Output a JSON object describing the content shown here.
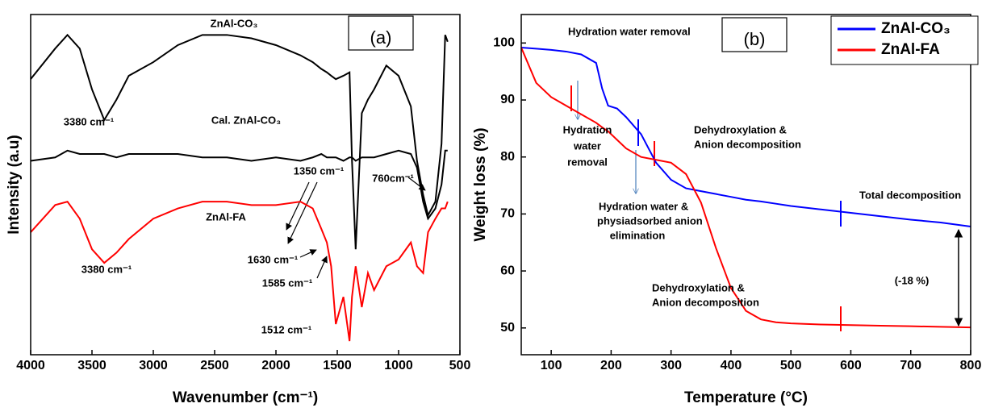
{
  "chart_data": [
    {
      "type": "line",
      "panel_label": "(a)",
      "x_label": "Wavenumber (cm⁻¹)",
      "y_label": "Intensity (a.u)",
      "x": [
        4000,
        3800,
        3700,
        3600,
        3500,
        3400,
        3300,
        3200,
        3000,
        2800,
        2600,
        2400,
        2200,
        2000,
        1800,
        1700,
        1630,
        1585,
        1550,
        1512,
        1450,
        1400,
        1380,
        1350,
        1300,
        1250,
        1200,
        1100,
        1000,
        900,
        850,
        800,
        760,
        700,
        650,
        620,
        600
      ],
      "series": [
        {
          "name": "ZnAl-CO₃",
          "color": "#000000",
          "values": [
            81,
            90,
            94,
            90,
            78,
            69,
            75,
            82,
            86,
            91,
            94,
            94,
            93,
            91,
            88,
            86,
            84,
            83,
            82,
            81,
            82,
            83,
            57,
            31,
            71,
            75,
            78,
            85,
            82,
            73,
            57,
            47,
            41,
            45,
            62,
            94,
            92
          ]
        },
        {
          "name": "Cal. ZnAl-CO₃",
          "color": "#000000",
          "values": [
            57,
            58,
            60,
            59,
            59,
            59,
            58,
            59,
            59,
            59,
            58,
            58,
            57,
            58,
            57,
            58,
            59,
            58,
            58,
            58,
            57,
            58,
            58,
            57,
            58,
            58,
            58,
            59,
            60,
            59,
            55,
            45,
            40,
            43,
            50,
            60,
            60
          ]
        },
        {
          "name": "ZnAl-FA",
          "color": "#ff0000",
          "values": [
            36,
            44,
            45,
            40,
            31,
            27,
            30,
            34,
            40,
            43,
            45,
            45,
            44,
            44,
            45,
            43,
            37,
            33,
            26,
            9,
            17,
            4,
            17,
            26,
            14,
            24,
            19,
            26,
            28,
            33,
            26,
            24,
            36,
            40,
            43,
            43,
            45
          ]
        }
      ],
      "xlim": [
        4000,
        500
      ],
      "ylim": [
        0,
        100
      ],
      "xticks": [
        4000,
        3500,
        3000,
        2500,
        2000,
        1500,
        1000,
        500
      ],
      "annotations": [
        "ZnAl-CO₃",
        "3380 cm⁻¹",
        "Cal. ZnAl-CO₃",
        "1350 cm⁻¹",
        "760cm⁻¹",
        "ZnAl-FA",
        "3380 cm⁻¹",
        "1630 cm⁻¹",
        "1585 cm⁻¹",
        "1512 cm⁻¹"
      ]
    },
    {
      "type": "line",
      "panel_label": "(b)",
      "x_label": "Temperature (°C)",
      "y_label": "Weight loss (%)",
      "x": [
        50,
        75,
        100,
        125,
        150,
        175,
        185,
        195,
        210,
        225,
        250,
        275,
        300,
        325,
        350,
        375,
        400,
        425,
        450,
        475,
        500,
        550,
        600,
        650,
        700,
        750,
        800
      ],
      "series": [
        {
          "name": "ZnAl-CO₃",
          "color": "#0000ff",
          "values": [
            99.2,
            99,
            98.8,
            98.5,
            98,
            96.5,
            92,
            89,
            88.5,
            87,
            84,
            79,
            76,
            74.5,
            74,
            73.5,
            73,
            72.5,
            72.2,
            71.8,
            71.4,
            70.8,
            70.2,
            69.6,
            69,
            68.5,
            67.8
          ]
        },
        {
          "name": "ZnAl-FA",
          "color": "#ff0000",
          "values": [
            99.2,
            93,
            90.5,
            89,
            87.5,
            86,
            85.2,
            84.5,
            83,
            81.5,
            80,
            79.5,
            79,
            77,
            72,
            64,
            57,
            53,
            51.5,
            51,
            50.8,
            50.6,
            50.5,
            50.4,
            50.3,
            50.2,
            50.1
          ]
        }
      ],
      "xlim": [
        50,
        800
      ],
      "ylim": [
        45.3,
        105
      ],
      "xticks": [
        100,
        200,
        300,
        400,
        500,
        600,
        700,
        800
      ],
      "yticks": [
        50,
        60,
        70,
        80,
        90,
        100
      ],
      "legend": "upper right",
      "annotations": [
        "Hydration water removal",
        "Hydration",
        "water",
        "removal",
        "Dehydroxylation &",
        "Anion decomposition",
        "Hydration water  &",
        "physiadsorbed anion",
        "elimination",
        "Total decomposition",
        "(-18 %)",
        "Dehydroxylation &",
        "Anion decomposition"
      ]
    }
  ]
}
